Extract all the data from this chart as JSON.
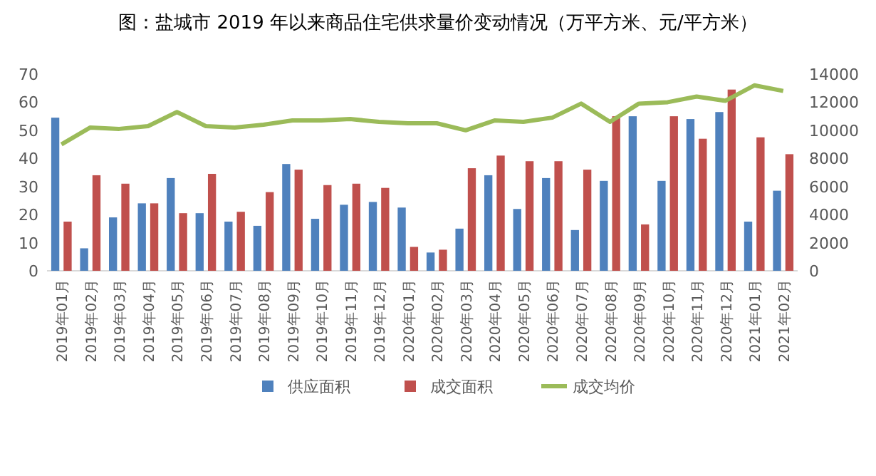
{
  "chart_data": {
    "type": "bar",
    "title": "图：盐城市 2019 年以来商品住宅供求量价变动情况（万平方米、元/平方米）",
    "categories": [
      "2019年01月",
      "2019年02月",
      "2019年03月",
      "2019年04月",
      "2019年05月",
      "2019年06月",
      "2019年07月",
      "2019年08月",
      "2019年09月",
      "2019年10月",
      "2019年11月",
      "2019年12月",
      "2020年01月",
      "2020年02月",
      "2020年03月",
      "2020年04月",
      "2020年05月",
      "2020年06月",
      "2020年07月",
      "2020年08月",
      "2020年09月",
      "2020年10月",
      "2020年11月",
      "2020年12月",
      "2021年01月",
      "2021年02月"
    ],
    "series": [
      {
        "name": "供应面积",
        "color": "#4f81bd",
        "values": [
          54.5,
          8,
          19,
          24,
          33,
          20.5,
          17.5,
          16,
          38,
          18.5,
          23.5,
          24.5,
          22.5,
          6.5,
          15,
          34,
          22,
          33,
          14.5,
          32,
          55,
          32,
          54,
          56.5,
          17.5,
          28.5
        ]
      },
      {
        "name": "成交面积",
        "color": "#c0504d",
        "values": [
          17.5,
          34,
          31,
          24,
          20.5,
          34.5,
          21,
          28,
          36,
          30.5,
          31,
          29.5,
          8.5,
          7.5,
          36.5,
          41,
          39,
          39,
          36,
          55,
          16.5,
          55,
          47,
          64.5,
          47.5,
          41.5
        ]
      },
      {
        "name": "成交均价",
        "type": "line",
        "axis": "y2",
        "color": "#9bbb59",
        "values": [
          9000,
          10200,
          10100,
          10300,
          11300,
          10300,
          10200,
          10400,
          10700,
          10700,
          10800,
          10600,
          10500,
          10500,
          10000,
          10700,
          10600,
          10900,
          11900,
          10600,
          11900,
          12000,
          12400,
          12100,
          13200,
          12800
        ]
      }
    ],
    "ylim": [
      0,
      70
    ],
    "yticks": [
      0,
      10,
      20,
      30,
      40,
      50,
      60,
      70
    ],
    "y2lim": [
      0,
      14000
    ],
    "y2ticks": [
      0,
      2000,
      4000,
      6000,
      8000,
      10000,
      12000,
      14000
    ],
    "grid": false,
    "legend": "bottom"
  }
}
